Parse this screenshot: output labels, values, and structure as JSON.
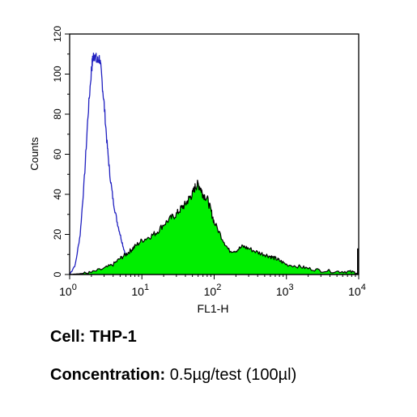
{
  "chart_data": {
    "type": "area",
    "xlabel": "FL1-H",
    "ylabel": "Counts",
    "xscale": "log",
    "xlim": [
      1,
      10000
    ],
    "ylim": [
      0,
      120
    ],
    "xticks": [
      {
        "base": "10",
        "exp": "0",
        "value": 1
      },
      {
        "base": "10",
        "exp": "1",
        "value": 10
      },
      {
        "base": "10",
        "exp": "2",
        "value": 100
      },
      {
        "base": "10",
        "exp": "3",
        "value": 1000
      },
      {
        "base": "10",
        "exp": "4",
        "value": 10000
      }
    ],
    "yticks": [
      "0",
      "20",
      "40",
      "60",
      "80",
      "100",
      "120"
    ],
    "series": [
      {
        "style": "outline",
        "color": "#2020c0",
        "x": [
          1,
          1.2,
          1.4,
          1.6,
          1.8,
          2.0,
          2.1,
          2.2,
          2.4,
          2.6,
          2.8,
          3.0,
          3.3,
          3.6,
          4.0,
          4.5,
          5.0,
          5.6,
          6.3,
          7.0,
          8.0
        ],
        "y": [
          0,
          5,
          20,
          48,
          80,
          102,
          108,
          110,
          106,
          108,
          97,
          85,
          65,
          50,
          37,
          27,
          20,
          13,
          7,
          3,
          0
        ]
      },
      {
        "style": "filled",
        "color": "#00ee00",
        "edge_color": "#000000",
        "x": [
          1,
          1.5,
          2,
          3,
          4,
          5,
          6,
          7,
          8,
          10,
          13,
          16,
          20,
          25,
          30,
          35,
          40,
          45,
          50,
          55,
          60,
          65,
          70,
          80,
          90,
          100,
          130,
          160,
          200,
          250,
          300,
          400,
          500,
          600,
          700,
          800,
          1000,
          1500,
          2000,
          3000,
          5000,
          7000,
          9000,
          10000
        ],
        "y": [
          0,
          0.5,
          1,
          3,
          5,
          8,
          10,
          12,
          14,
          17,
          19,
          21,
          25,
          28,
          30,
          33,
          35,
          38,
          40,
          44,
          45,
          43,
          40,
          38,
          32,
          26,
          18,
          12,
          12,
          14,
          13,
          11,
          10,
          9,
          8,
          7,
          5,
          4,
          3,
          2,
          1.5,
          1.5,
          1,
          0
        ]
      }
    ],
    "end_spike": {
      "x": 10000,
      "y": 13
    }
  },
  "caption": {
    "cell_label": "Cell:",
    "cell_value": "THP-1",
    "conc_label": "Concentration:",
    "conc_value": "0.5µg/test (100µl)"
  }
}
